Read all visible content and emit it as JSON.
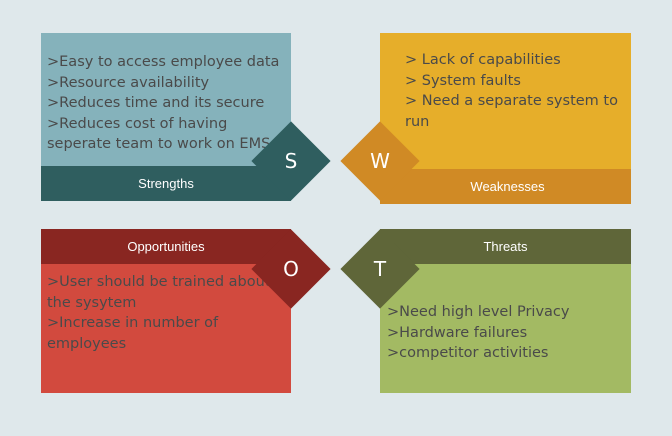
{
  "strengths": {
    "letter": "S",
    "label": "Strengths",
    "text": ">Easy to access employee data\n>Resource availability\n>Reduces time and its secure\n>Reduces cost of having seperate team to work on EMS"
  },
  "weaknesses": {
    "letter": "W",
    "label": "Weaknesses",
    "text": "> Lack of capabilities\n> System faults\n> Need a separate system to\n   run"
  },
  "opportunities": {
    "letter": "O",
    "label": "Opportunities",
    "text": ">User should be trained about the sysytem\n>Increase in number of employees"
  },
  "threats": {
    "letter": "T",
    "label": "Threats",
    "text": " >Need high level Privacy\n>Hardware failures\n>competitor activities"
  },
  "colors": {
    "strengths_box": "#85b2bb",
    "strengths_band": "#2f5e5f",
    "weaknesses_box": "#e6ae2a",
    "weaknesses_band": "#d08a25",
    "opportunities_box": "#d24a3e",
    "opportunities_band": "#892621",
    "threats_box": "#a3ba63",
    "threats_band": "#5f6639"
  }
}
